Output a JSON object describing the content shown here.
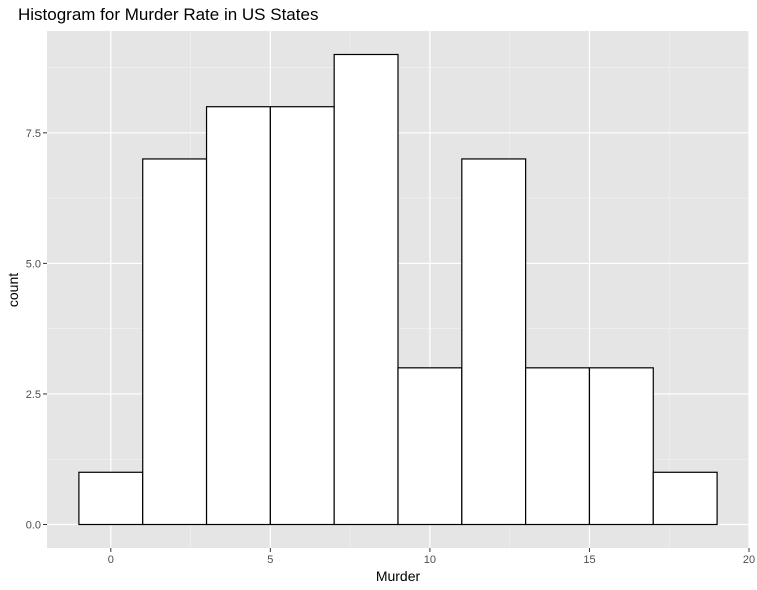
{
  "chart_data": {
    "type": "bar",
    "title": "Histogram for Murder Rate in US States",
    "xlabel": "Murder",
    "ylabel": "count",
    "bin_width": 2,
    "bins": [
      {
        "start": -1,
        "end": 1,
        "count": 1
      },
      {
        "start": 1,
        "end": 3,
        "count": 7
      },
      {
        "start": 3,
        "end": 5,
        "count": 8
      },
      {
        "start": 5,
        "end": 7,
        "count": 8
      },
      {
        "start": 7,
        "end": 9,
        "count": 9
      },
      {
        "start": 9,
        "end": 11,
        "count": 3
      },
      {
        "start": 11,
        "end": 13,
        "count": 7
      },
      {
        "start": 13,
        "end": 15,
        "count": 3
      },
      {
        "start": 15,
        "end": 17,
        "count": 3
      },
      {
        "start": 17,
        "end": 19,
        "count": 1
      }
    ],
    "xlim": [
      -2,
      20
    ],
    "ylim": [
      -0.45,
      9.45
    ],
    "x_ticks": [
      0,
      5,
      10,
      15,
      20
    ],
    "x_tick_labels": [
      "0",
      "5",
      "10",
      "15",
      "20"
    ],
    "y_ticks": [
      0,
      2.5,
      5,
      7.5
    ],
    "y_tick_labels": [
      "0.0",
      "2.5",
      "5.0",
      "7.5"
    ],
    "grid": true,
    "colors": {
      "panel_background": "#e5e5e5",
      "grid_major": "#ffffff",
      "grid_minor": "#f2f2f2",
      "bar_fill": "#ffffff",
      "bar_outline": "#000000",
      "tick_text": "#4d4d4d"
    }
  }
}
